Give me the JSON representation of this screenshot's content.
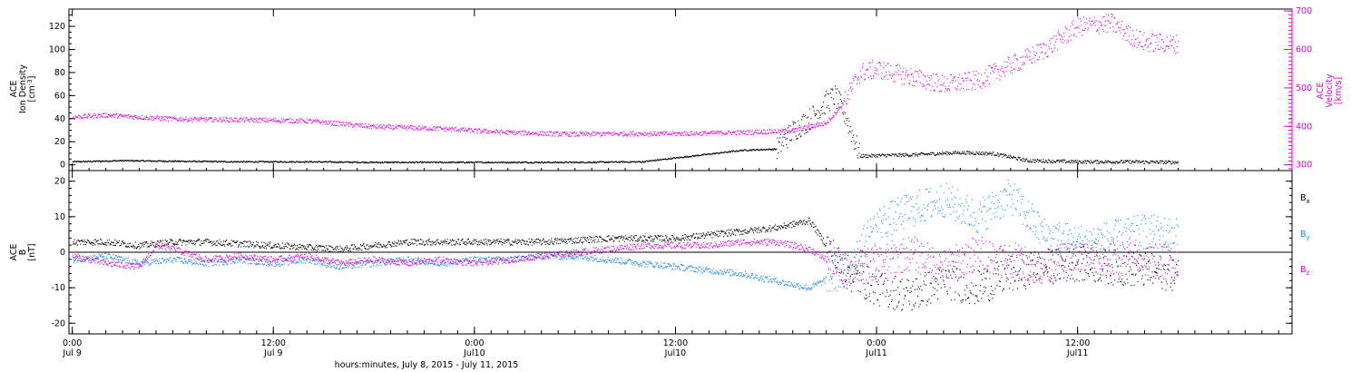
{
  "footer": {
    "xlabel": "hours:minutes, July  8, 2015 - July 11, 2015"
  },
  "x_ticks": [
    {
      "t": 0,
      "time": "0:00",
      "day": "Jul 9"
    },
    {
      "t": 12,
      "time": "12:00",
      "day": "Jul 9"
    },
    {
      "t": 24,
      "time": "0:00",
      "day": "Jul10"
    },
    {
      "t": 36,
      "time": "12:00",
      "day": "Jul10"
    },
    {
      "t": 48,
      "time": "0:00",
      "day": "Jul11"
    },
    {
      "t": 60,
      "time": "12:00",
      "day": "Jul11"
    }
  ],
  "colors": {
    "black": "#000000",
    "magenta": "#e000e0",
    "blue": "#1e88e5"
  },
  "chart_data": [
    {
      "type": "scatter",
      "panel": "top",
      "ylabel_lines": [
        "ACE",
        "Ion Density"
      ],
      "ylabel_unit": "[cm",
      "ylabel_unit_sup": "-3",
      "ylabel_unit_end": "]",
      "y2label_lines": [
        "ACE",
        "Velocity",
        "[km/s]"
      ],
      "xlim_hours": [
        -0.2,
        72.8
      ],
      "ylim": [
        -5,
        135
      ],
      "yticks": [
        0,
        20,
        40,
        60,
        80,
        100,
        120
      ],
      "y2lim": [
        285,
        705
      ],
      "y2ticks": [
        300,
        400,
        500,
        600,
        700
      ],
      "series": [
        {
          "color": "black",
          "axis": "left",
          "points": [
            [
              0,
              3
            ],
            [
              3,
              4
            ],
            [
              6,
              3.5
            ],
            [
              10,
              3
            ],
            [
              14,
              3
            ],
            [
              18,
              2.5
            ],
            [
              22,
              2.5
            ],
            [
              26,
              2.5
            ],
            [
              30,
              2.5
            ],
            [
              34,
              3
            ],
            [
              37,
              8
            ],
            [
              40,
              13
            ],
            [
              42,
              14
            ],
            [
              43,
              30
            ],
            [
              44,
              40
            ],
            [
              45,
              55
            ],
            [
              45.5,
              60
            ],
            [
              46,
              48
            ],
            [
              47,
              8
            ],
            [
              50,
              9
            ],
            [
              53,
              11
            ],
            [
              55,
              10
            ],
            [
              57,
              4
            ],
            [
              60,
              3
            ],
            [
              63,
              3
            ],
            [
              66,
              2.5
            ]
          ]
        },
        {
          "color": "magenta",
          "axis": "right",
          "points": [
            [
              0,
              425
            ],
            [
              2,
              430
            ],
            [
              6,
              420
            ],
            [
              10,
              418
            ],
            [
              14,
              415
            ],
            [
              18,
              400
            ],
            [
              22,
              395
            ],
            [
              26,
              385
            ],
            [
              30,
              380
            ],
            [
              32,
              382
            ],
            [
              36,
              382
            ],
            [
              40,
              385
            ],
            [
              43,
              390
            ],
            [
              45,
              410
            ],
            [
              46,
              460
            ],
            [
              47,
              540
            ],
            [
              48,
              550
            ],
            [
              50,
              530
            ],
            [
              52,
              510
            ],
            [
              54,
              520
            ],
            [
              56,
              560
            ],
            [
              58,
              600
            ],
            [
              60,
              660
            ],
            [
              62,
              670
            ],
            [
              63,
              640
            ],
            [
              64,
              620
            ],
            [
              66,
              615
            ]
          ]
        }
      ]
    },
    {
      "type": "scatter",
      "panel": "bottom",
      "ylabel_lines": [
        "ACE",
        "B",
        "[nT]"
      ],
      "xlim_hours": [
        -0.2,
        72.8
      ],
      "ylim": [
        -23,
        23
      ],
      "yticks": [
        -20,
        -10,
        0,
        10,
        20
      ],
      "zero_line": true,
      "legend": [
        "B_x",
        "B_y",
        "B_z"
      ],
      "series": [
        {
          "name": "B_x",
          "label_main": "B",
          "label_sub": "x",
          "color": "black",
          "points": [
            [
              0,
              3
            ],
            [
              2,
              3
            ],
            [
              4,
              2
            ],
            [
              6,
              3
            ],
            [
              8,
              3
            ],
            [
              12,
              2
            ],
            [
              16,
              1
            ],
            [
              20,
              3
            ],
            [
              24,
              3
            ],
            [
              28,
              3
            ],
            [
              32,
              4
            ],
            [
              36,
              4
            ],
            [
              40,
              6
            ],
            [
              42,
              7
            ],
            [
              44,
              9
            ],
            [
              46,
              -5
            ],
            [
              48,
              -10
            ],
            [
              50,
              -12
            ],
            [
              52,
              -8
            ],
            [
              54,
              -10
            ],
            [
              56,
              -6
            ],
            [
              58,
              -4
            ],
            [
              60,
              -3
            ],
            [
              62,
              -4
            ],
            [
              64,
              -5
            ],
            [
              66,
              -6
            ]
          ]
        },
        {
          "name": "B_y",
          "label_main": "B",
          "label_sub": "y",
          "color": "blue",
          "points": [
            [
              0,
              -2
            ],
            [
              2,
              -1
            ],
            [
              4,
              -3
            ],
            [
              6,
              -2
            ],
            [
              8,
              -3
            ],
            [
              10,
              -2
            ],
            [
              12,
              -3
            ],
            [
              14,
              -2
            ],
            [
              16,
              -4
            ],
            [
              18,
              -3
            ],
            [
              20,
              -2
            ],
            [
              22,
              -3
            ],
            [
              24,
              -2
            ],
            [
              26,
              -2
            ],
            [
              28,
              -1
            ],
            [
              30,
              -1
            ],
            [
              32,
              -2
            ],
            [
              34,
              -3
            ],
            [
              36,
              -4
            ],
            [
              38,
              -5
            ],
            [
              40,
              -6
            ],
            [
              42,
              -8
            ],
            [
              44,
              -10
            ],
            [
              46,
              -5
            ],
            [
              48,
              8
            ],
            [
              50,
              12
            ],
            [
              52,
              15
            ],
            [
              54,
              10
            ],
            [
              56,
              16
            ],
            [
              58,
              5
            ],
            [
              60,
              3
            ],
            [
              62,
              4
            ],
            [
              64,
              6
            ],
            [
              66,
              5
            ]
          ]
        },
        {
          "name": "B_z",
          "label_main": "B",
          "label_sub": "z",
          "color": "magenta",
          "points": [
            [
              0,
              -1
            ],
            [
              2,
              -3
            ],
            [
              4,
              -4
            ],
            [
              5,
              2
            ],
            [
              6,
              1
            ],
            [
              8,
              -2
            ],
            [
              10,
              -1
            ],
            [
              12,
              -2
            ],
            [
              14,
              -1
            ],
            [
              16,
              -3
            ],
            [
              18,
              -2
            ],
            [
              20,
              -3
            ],
            [
              22,
              -2
            ],
            [
              24,
              -3
            ],
            [
              26,
              -2
            ],
            [
              28,
              -1
            ],
            [
              30,
              0
            ],
            [
              32,
              1
            ],
            [
              34,
              2
            ],
            [
              36,
              2
            ],
            [
              38,
              2
            ],
            [
              40,
              3
            ],
            [
              42,
              3
            ],
            [
              44,
              1
            ],
            [
              46,
              -5
            ],
            [
              48,
              -3
            ],
            [
              50,
              0
            ],
            [
              52,
              -4
            ],
            [
              54,
              0
            ],
            [
              56,
              -2
            ],
            [
              58,
              -4
            ],
            [
              60,
              -1
            ],
            [
              62,
              -2
            ],
            [
              64,
              -2
            ],
            [
              66,
              -3
            ]
          ]
        }
      ]
    }
  ]
}
